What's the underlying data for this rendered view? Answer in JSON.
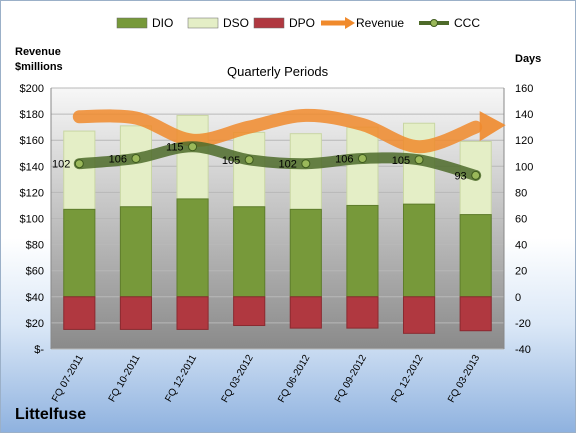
{
  "company": "Littelfuse",
  "chart_data": {
    "type": "bar",
    "title": "Quarterly Periods",
    "left_axis_label_line1": "Revenue",
    "left_axis_label_line2": "$millions",
    "right_axis_label": "Days",
    "categories": [
      "FQ 07-2011",
      "FQ 10-2011",
      "FQ 12-2011",
      "FQ 03-2012",
      "FQ 06-2012",
      "FQ 09-2012",
      "FQ 12-2012",
      "FQ 03-2013"
    ],
    "left_ylim": [
      0,
      200
    ],
    "left_ticks": [
      "$-",
      "$20",
      "$40",
      "$60",
      "$80",
      "$100",
      "$120",
      "$140",
      "$160",
      "$180",
      "$200"
    ],
    "right_ylim": [
      -40,
      160
    ],
    "right_ticks": [
      "-40",
      "-20",
      "0",
      "20",
      "40",
      "60",
      "80",
      "100",
      "120",
      "140",
      "160"
    ],
    "series": [
      {
        "name": "DIO",
        "color": "#77993a",
        "values": [
          67,
          69,
          75,
          69,
          67,
          70,
          71,
          63
        ]
      },
      {
        "name": "DSO",
        "color": "#e4eec6",
        "values": [
          60,
          62,
          64,
          57,
          58,
          60,
          62,
          56
        ]
      },
      {
        "name": "DPO",
        "color": "#b03840",
        "values": [
          -25,
          -25,
          -25,
          -22,
          -24,
          -24,
          -28,
          -26
        ]
      },
      {
        "name": "Revenue",
        "color": "#f08a2c",
        "values": [
          178,
          177,
          160,
          170,
          179,
          172,
          155,
          170
        ]
      },
      {
        "name": "CCC",
        "color": "#4e6b2a",
        "values": [
          102,
          106,
          115,
          105,
          102,
          106,
          105,
          93
        ]
      }
    ],
    "ccc_labels": [
      "102",
      "106",
      "115",
      "105",
      "102",
      "106",
      "105",
      "93"
    ],
    "grid": true,
    "legend_position": "top"
  }
}
